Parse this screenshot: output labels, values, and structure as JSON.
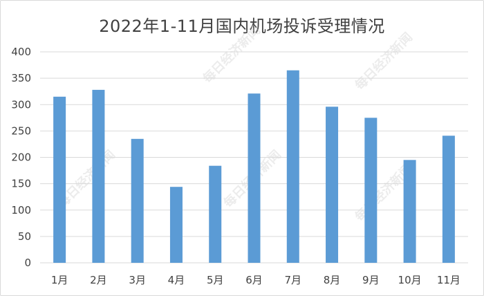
{
  "chart_data": {
    "type": "bar",
    "title": "2022年1-11月国内机场投诉受理情况",
    "categories": [
      "1月",
      "2月",
      "3月",
      "4月",
      "5月",
      "6月",
      "7月",
      "8月",
      "9月",
      "10月",
      "11月"
    ],
    "values": [
      315,
      328,
      235,
      144,
      184,
      321,
      365,
      296,
      275,
      195,
      241
    ],
    "ylim": [
      0,
      400
    ],
    "yticks": [
      "0",
      "50",
      "100",
      "150",
      "200",
      "250",
      "300",
      "350",
      "400"
    ],
    "xlabel": "",
    "ylabel": "",
    "grid": true,
    "bar_color": "#5b9bd5"
  },
  "watermark": "每日经济新闻"
}
